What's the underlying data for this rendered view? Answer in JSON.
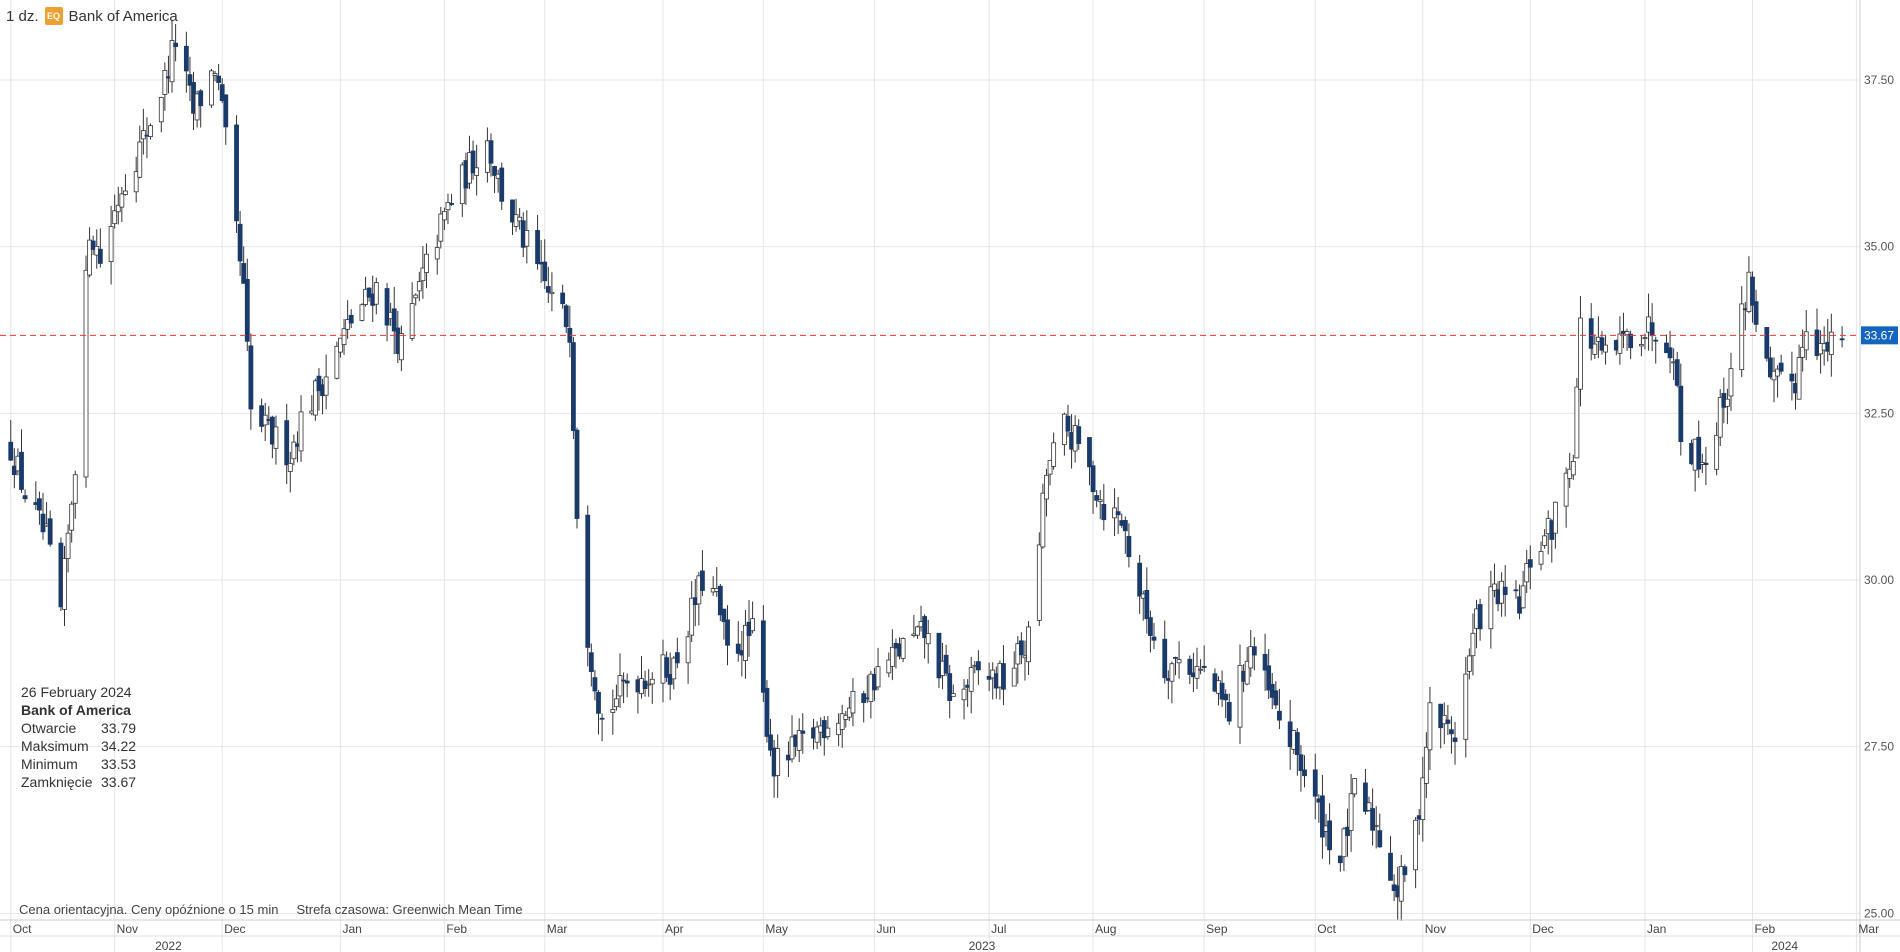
{
  "header": {
    "interval": "1 dz.",
    "badge": "EQ",
    "instrument": "Bank of America"
  },
  "info_box": {
    "date": "26 February 2024",
    "name": "Bank of America",
    "rows": [
      {
        "label": "Otwarcie",
        "value": "33.79"
      },
      {
        "label": "Maksimum",
        "value": "34.22"
      },
      {
        "label": "Minimum",
        "value": "33.53"
      },
      {
        "label": "Zamknięcie",
        "value": "33.67"
      }
    ]
  },
  "footer": {
    "note": "Cena orientacyjna. Ceny opóźnione o 15 min",
    "timezone": "Strefa czasowa: Greenwich Mean Time"
  },
  "colors": {
    "down": "#1a3a6b",
    "up_fill": "#ffffff",
    "outline": "#333333",
    "last_price": "#1565c0",
    "ref_line": "#e53935",
    "grid": "#e6e6e6"
  },
  "chart_data": {
    "type": "candlestick",
    "ylim": [
      24.9,
      38.7
    ],
    "y_ticks": [
      "37.50",
      "35.00",
      "32.50",
      "30.00",
      "27.50",
      "25.00"
    ],
    "last_price": "33.67",
    "month_ticks": [
      {
        "label": "Oct",
        "date": "2022-10-03"
      },
      {
        "label": "Nov",
        "date": "2022-11-01"
      },
      {
        "label": "Dec",
        "date": "2022-12-01"
      },
      {
        "label": "Jan",
        "date": "2023-01-03"
      },
      {
        "label": "Feb",
        "date": "2023-02-01"
      },
      {
        "label": "Mar",
        "date": "2023-03-01"
      },
      {
        "label": "Apr",
        "date": "2023-04-03"
      },
      {
        "label": "May",
        "date": "2023-05-01"
      },
      {
        "label": "Jun",
        "date": "2023-06-01"
      },
      {
        "label": "Jul",
        "date": "2023-07-03"
      },
      {
        "label": "Aug",
        "date": "2023-08-01"
      },
      {
        "label": "Sep",
        "date": "2023-09-01"
      },
      {
        "label": "Oct",
        "date": "2023-10-02"
      },
      {
        "label": "Nov",
        "date": "2023-11-01"
      },
      {
        "label": "Dec",
        "date": "2023-12-01"
      },
      {
        "label": "Jan",
        "date": "2024-01-02"
      },
      {
        "label": "Feb",
        "date": "2024-02-01"
      },
      {
        "label": "Mar",
        "date": "2024-03-01"
      }
    ],
    "year_ticks": [
      {
        "label": "2022",
        "date": "2022-11-16"
      },
      {
        "label": "2023",
        "date": "2023-07-01"
      },
      {
        "label": "2024",
        "date": "2024-02-10"
      }
    ],
    "series": [
      {
        "values": [
          {
            "date": "2022-10-03",
            "close": 32.0
          },
          {
            "date": "2022-10-07",
            "close": 31.3
          },
          {
            "date": "2022-10-13",
            "close": 30.6
          },
          {
            "date": "2022-10-17",
            "close": 29.5
          },
          {
            "date": "2022-10-21",
            "close": 31.8
          },
          {
            "date": "2022-10-25",
            "close": 35.3
          },
          {
            "date": "2022-10-28",
            "close": 34.8
          },
          {
            "date": "2022-11-03",
            "close": 35.9
          },
          {
            "date": "2022-11-09",
            "close": 36.6
          },
          {
            "date": "2022-11-15",
            "close": 37.5
          },
          {
            "date": "2022-11-18",
            "close": 38.1
          },
          {
            "date": "2022-11-23",
            "close": 37.0
          },
          {
            "date": "2022-11-29",
            "close": 37.7
          },
          {
            "date": "2022-12-01",
            "close": 37.0
          },
          {
            "date": "2022-12-07",
            "close": 34.3
          },
          {
            "date": "2022-12-09",
            "close": 32.5
          },
          {
            "date": "2022-12-14",
            "close": 32.2
          },
          {
            "date": "2022-12-20",
            "close": 31.9
          },
          {
            "date": "2022-12-23",
            "close": 32.4
          },
          {
            "date": "2022-12-30",
            "close": 33.1
          },
          {
            "date": "2023-01-06",
            "close": 33.9
          },
          {
            "date": "2023-01-13",
            "close": 34.4
          },
          {
            "date": "2023-01-20",
            "close": 33.5
          },
          {
            "date": "2023-01-27",
            "close": 34.7
          },
          {
            "date": "2023-02-02",
            "close": 35.6
          },
          {
            "date": "2023-02-09",
            "close": 36.3
          },
          {
            "date": "2023-02-13",
            "close": 36.6
          },
          {
            "date": "2023-02-17",
            "close": 35.8
          },
          {
            "date": "2023-02-24",
            "close": 35.0
          },
          {
            "date": "2023-03-02",
            "close": 34.3
          },
          {
            "date": "2023-03-08",
            "close": 33.8
          },
          {
            "date": "2023-03-10",
            "close": 31.1
          },
          {
            "date": "2023-03-13",
            "close": 29.2
          },
          {
            "date": "2023-03-17",
            "close": 27.9
          },
          {
            "date": "2023-03-24",
            "close": 28.5
          },
          {
            "date": "2023-03-31",
            "close": 28.6
          },
          {
            "date": "2023-04-06",
            "close": 28.7
          },
          {
            "date": "2023-04-14",
            "close": 30.0
          },
          {
            "date": "2023-04-18",
            "close": 29.7
          },
          {
            "date": "2023-04-21",
            "close": 28.9
          },
          {
            "date": "2023-04-28",
            "close": 29.2
          },
          {
            "date": "2023-05-04",
            "close": 27.2
          },
          {
            "date": "2023-05-11",
            "close": 27.5
          },
          {
            "date": "2023-05-19",
            "close": 27.9
          },
          {
            "date": "2023-05-26",
            "close": 28.1
          },
          {
            "date": "2023-06-02",
            "close": 28.6
          },
          {
            "date": "2023-06-09",
            "close": 29.0
          },
          {
            "date": "2023-06-15",
            "close": 29.2
          },
          {
            "date": "2023-06-23",
            "close": 28.2
          },
          {
            "date": "2023-06-30",
            "close": 28.6
          },
          {
            "date": "2023-07-07",
            "close": 28.5
          },
          {
            "date": "2023-07-14",
            "close": 29.1
          },
          {
            "date": "2023-07-19",
            "close": 31.6
          },
          {
            "date": "2023-07-24",
            "close": 32.3
          },
          {
            "date": "2023-07-28",
            "close": 32.0
          },
          {
            "date": "2023-08-04",
            "close": 31.1
          },
          {
            "date": "2023-08-09",
            "close": 30.9
          },
          {
            "date": "2023-08-15",
            "close": 29.6
          },
          {
            "date": "2023-08-21",
            "close": 28.7
          },
          {
            "date": "2023-08-25",
            "close": 28.8
          },
          {
            "date": "2023-09-01",
            "close": 28.6
          },
          {
            "date": "2023-09-08",
            "close": 28.0
          },
          {
            "date": "2023-09-14",
            "close": 29.0
          },
          {
            "date": "2023-09-21",
            "close": 28.0
          },
          {
            "date": "2023-09-27",
            "close": 27.4
          },
          {
            "date": "2023-10-03",
            "close": 26.5
          },
          {
            "date": "2023-10-09",
            "close": 25.8
          },
          {
            "date": "2023-10-13",
            "close": 26.8
          },
          {
            "date": "2023-10-19",
            "close": 26.3
          },
          {
            "date": "2023-10-25",
            "close": 25.3
          },
          {
            "date": "2023-10-30",
            "close": 26.2
          },
          {
            "date": "2023-11-03",
            "close": 28.0
          },
          {
            "date": "2023-11-10",
            "close": 27.7
          },
          {
            "date": "2023-11-16",
            "close": 29.4
          },
          {
            "date": "2023-11-21",
            "close": 29.8
          },
          {
            "date": "2023-11-28",
            "close": 29.6
          },
          {
            "date": "2023-12-01",
            "close": 30.3
          },
          {
            "date": "2023-12-07",
            "close": 30.8
          },
          {
            "date": "2023-12-13",
            "close": 32.0
          },
          {
            "date": "2023-12-15",
            "close": 33.8
          },
          {
            "date": "2023-12-22",
            "close": 33.3
          },
          {
            "date": "2023-12-29",
            "close": 33.7
          },
          {
            "date": "2024-01-05",
            "close": 33.8
          },
          {
            "date": "2024-01-10",
            "close": 33.5
          },
          {
            "date": "2024-01-12",
            "close": 32.1
          },
          {
            "date": "2024-01-19",
            "close": 31.8
          },
          {
            "date": "2024-01-25",
            "close": 32.9
          },
          {
            "date": "2024-01-31",
            "close": 34.5
          },
          {
            "date": "2024-02-06",
            "close": 32.9
          },
          {
            "date": "2024-02-13",
            "close": 33.0
          },
          {
            "date": "2024-02-16",
            "close": 33.9
          },
          {
            "date": "2024-02-21",
            "close": 33.4
          },
          {
            "date": "2024-02-26",
            "close": 33.67
          }
        ]
      }
    ]
  }
}
